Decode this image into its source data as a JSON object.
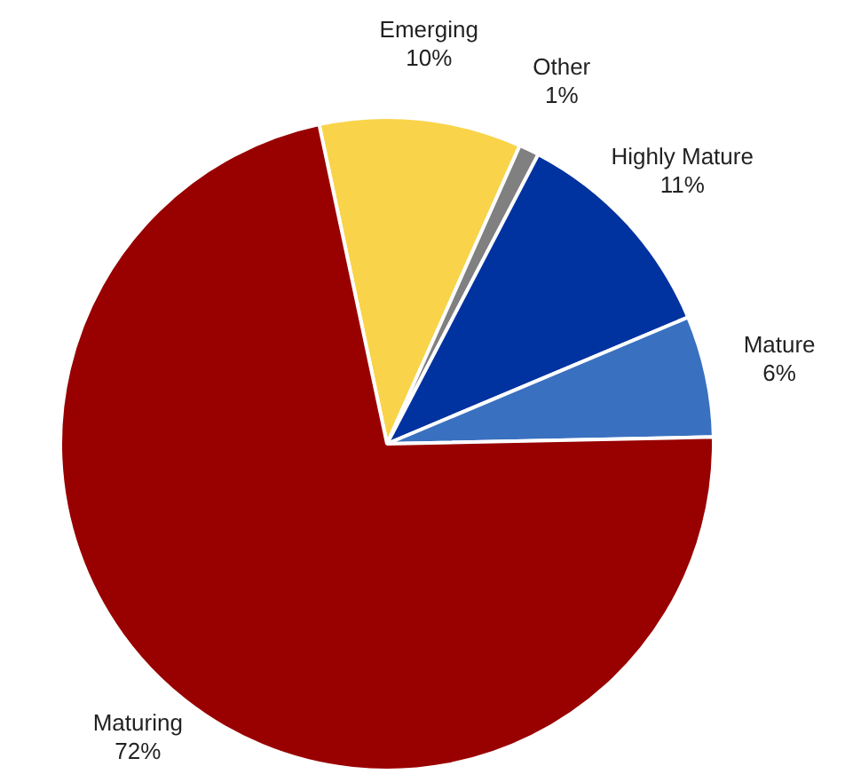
{
  "chart_data": {
    "type": "pie",
    "categories": [
      "Emerging",
      "Other",
      "Highly Mature",
      "Mature",
      "Maturing"
    ],
    "values": [
      10,
      1,
      11,
      6,
      72
    ],
    "colors": [
      "#f9d44a",
      "#808080",
      "#0033a0",
      "#3a70c0",
      "#990000"
    ],
    "value_labels": [
      "10%",
      "1%",
      "11%",
      "6%",
      "72%"
    ]
  }
}
